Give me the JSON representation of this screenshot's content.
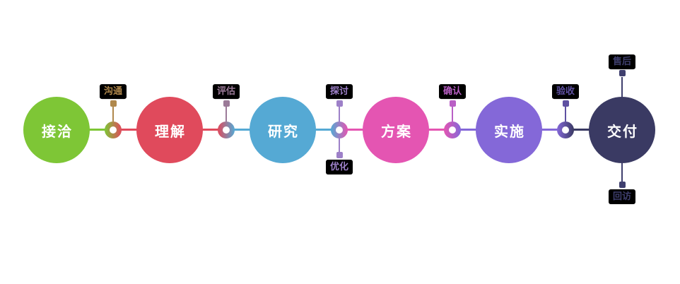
{
  "diagram": {
    "type": "process-flow",
    "background_color": "#ffffff",
    "label_box_background": "#000000",
    "node_text_color": "#ffffff",
    "stages": [
      {
        "label": "接洽",
        "color": "#7ec636"
      },
      {
        "label": "理解",
        "color": "#e04a5c"
      },
      {
        "label": "研究",
        "color": "#55a9d4"
      },
      {
        "label": "方案",
        "color": "#e455b2"
      },
      {
        "label": "实施",
        "color": "#8468d8"
      },
      {
        "label": "交付",
        "color": "#3a3a63"
      }
    ],
    "connectors": [
      {
        "from": 0,
        "to": 1,
        "mid_color": "#b0884c",
        "labels": [
          {
            "text": "沟通",
            "position": "above"
          }
        ]
      },
      {
        "from": 1,
        "to": 2,
        "mid_color": "#9b7a98",
        "labels": [
          {
            "text": "评估",
            "position": "above"
          }
        ]
      },
      {
        "from": 2,
        "to": 3,
        "mid_color": "#9d80c8",
        "labels": [
          {
            "text": "探讨",
            "position": "above"
          },
          {
            "text": "优化",
            "position": "below"
          }
        ]
      },
      {
        "from": 3,
        "to": 4,
        "mid_color": "#b95fc5",
        "labels": [
          {
            "text": "确认",
            "position": "above"
          }
        ]
      },
      {
        "from": 4,
        "to": 5,
        "mid_color": "#5f51a2",
        "labels": [
          {
            "text": "验收",
            "position": "above"
          }
        ]
      }
    ],
    "terminal_labels": [
      {
        "stage": 5,
        "position": "above",
        "text": "售后",
        "color": "#3f3f6e"
      },
      {
        "stage": 5,
        "position": "below",
        "text": "回访",
        "color": "#3f3f6e"
      }
    ]
  }
}
